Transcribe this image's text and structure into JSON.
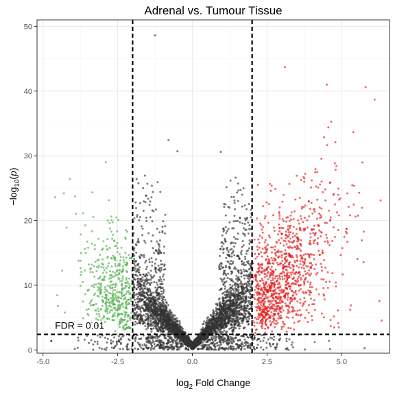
{
  "chart_data": {
    "type": "scatter",
    "title": "Adrenal vs. Tumour Tissue",
    "xlabel": {
      "base": "log",
      "sub": "2",
      "rest": " Fold Change"
    },
    "ylabel": {
      "lead": "−log",
      "sub": "10",
      "rest": "(",
      "italic": "p",
      "tail": ")"
    },
    "xlim": [
      -5.2,
      6.6
    ],
    "ylim": [
      -0.5,
      51
    ],
    "x_ticks": [
      -5.0,
      -2.5,
      0.0,
      2.5,
      5.0
    ],
    "x_tick_labels": [
      "-5.0",
      "-2.5",
      "0.0",
      "2.5",
      "5.0"
    ],
    "y_ticks": [
      0,
      10,
      20,
      30,
      40,
      50
    ],
    "y_tick_labels": [
      "0",
      "10",
      "20",
      "30",
      "40",
      "50"
    ],
    "grid": true,
    "fc_cutoffs": [
      -2,
      2
    ],
    "p_cutoff": 2.4,
    "annotation": {
      "text": "FDR = 0.01",
      "x": -4.6,
      "y": 3.8
    },
    "colors": {
      "down": "#4daf4a",
      "up": "#e41a1c",
      "ns": "#333333",
      "cutoff_line": "#000000",
      "grid": "#ebebeb",
      "panel_border": "#333333"
    },
    "notable_points": [
      {
        "x": -1.25,
        "y": 48.6
      },
      {
        "x": -0.8,
        "y": 32.4
      },
      {
        "x": -0.5,
        "y": 30.7
      },
      {
        "x": 0.95,
        "y": 30.6
      },
      {
        "x": 3.1,
        "y": 43.7
      },
      {
        "x": 4.5,
        "y": 41.0
      },
      {
        "x": 5.8,
        "y": 40.6
      },
      {
        "x": 6.1,
        "y": 38.7
      },
      {
        "x": 6.3,
        "y": 23.1
      },
      {
        "x": -4.6,
        "y": 23.6
      },
      {
        "x": -4.3,
        "y": 24.2
      },
      {
        "x": -4.1,
        "y": 26.4
      },
      {
        "x": -4.5,
        "y": 6.8
      },
      {
        "x": -3.6,
        "y": 12.3
      },
      {
        "x": -2.9,
        "y": 29.0
      }
    ]
  }
}
